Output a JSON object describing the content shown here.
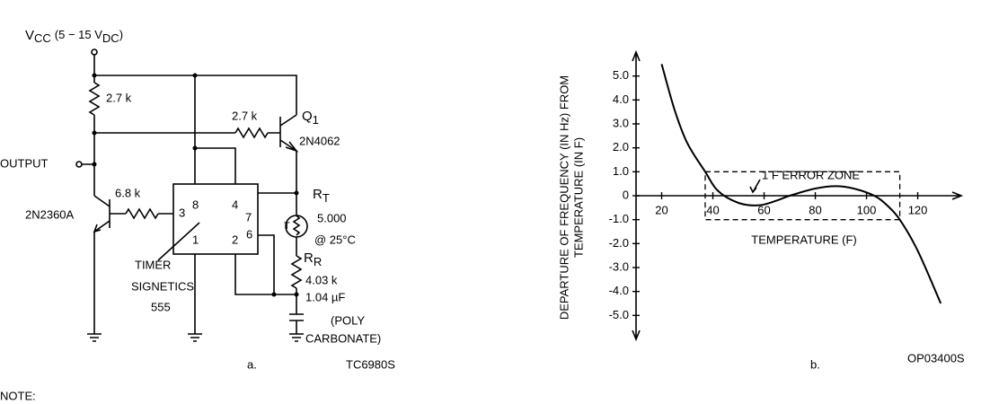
{
  "circuit": {
    "supply": {
      "symbol": "V",
      "symbol_sub": "CC",
      "range": "(5 − 15 V",
      "range_sub": "DC",
      "close": ")"
    },
    "output": "OUTPUT",
    "r_top": "2.7 k",
    "r_base_q1": "2.7 k",
    "q1": {
      "name": "Q",
      "sub": "1",
      "part": "2N4062"
    },
    "q2_part": "2N2360A",
    "r_base_q2": "6.8 k",
    "pins": [
      "8",
      "4",
      "7",
      "3",
      "1",
      "2",
      "6"
    ],
    "timer": [
      "TIMER",
      "SIGNETICS",
      "555"
    ],
    "rt": {
      "name": "R",
      "sub": "T",
      "symbol": "T",
      "value": "5.000",
      "condition": "@ 25°C"
    },
    "rr": {
      "name": "R",
      "sub": "R",
      "value": "4.03 k"
    },
    "capacitor": [
      "1.04 µF",
      "(POLY",
      "CARBONATE)"
    ],
    "caption": "a.",
    "code": "TC6980S"
  },
  "note": "NOTE:",
  "chart_data": {
    "type": "line",
    "ylabel": [
      "DEPARTURE OF FREQUENCY (IN Hz) FROM",
      "TEMPERATURE (IN F)"
    ],
    "xlabel": "TEMPERATURE (F)",
    "x": [
      20,
      25,
      30,
      37,
      42,
      50,
      58,
      65,
      70,
      80,
      88,
      95,
      103,
      108,
      113,
      120,
      129
    ],
    "values": [
      5.5,
      3.6,
      2.2,
      1.0,
      0.2,
      -0.3,
      -0.4,
      -0.2,
      0,
      0.3,
      0.4,
      0.3,
      0,
      -0.4,
      -1.0,
      -2.3,
      -4.5
    ],
    "color": "#000000",
    "xlim": [
      10,
      137
    ],
    "ylim": [
      -6,
      6
    ],
    "xticks": [
      20,
      40,
      60,
      80,
      100,
      120
    ],
    "yticks": [
      {
        "value": 5,
        "label": "5.0"
      },
      {
        "value": 4,
        "label": "4.0"
      },
      {
        "value": 3,
        "label": "3.0"
      },
      {
        "value": 2,
        "label": "2.0"
      },
      {
        "value": 1,
        "label": "1.0"
      },
      0,
      {
        "value": -1,
        "label": "-1.0"
      },
      {
        "value": -2,
        "label": "-2.0"
      },
      {
        "value": -3,
        "label": "-3.0"
      },
      {
        "value": -4,
        "label": "-4.0"
      },
      {
        "value": -5,
        "label": "-5.0"
      }
    ],
    "annotation": "1 F ERROR ZONE",
    "error_zone": {
      "x": [
        37,
        113
      ],
      "y": [
        -1,
        1
      ]
    },
    "caption": "b.",
    "code": "OP03400S"
  }
}
